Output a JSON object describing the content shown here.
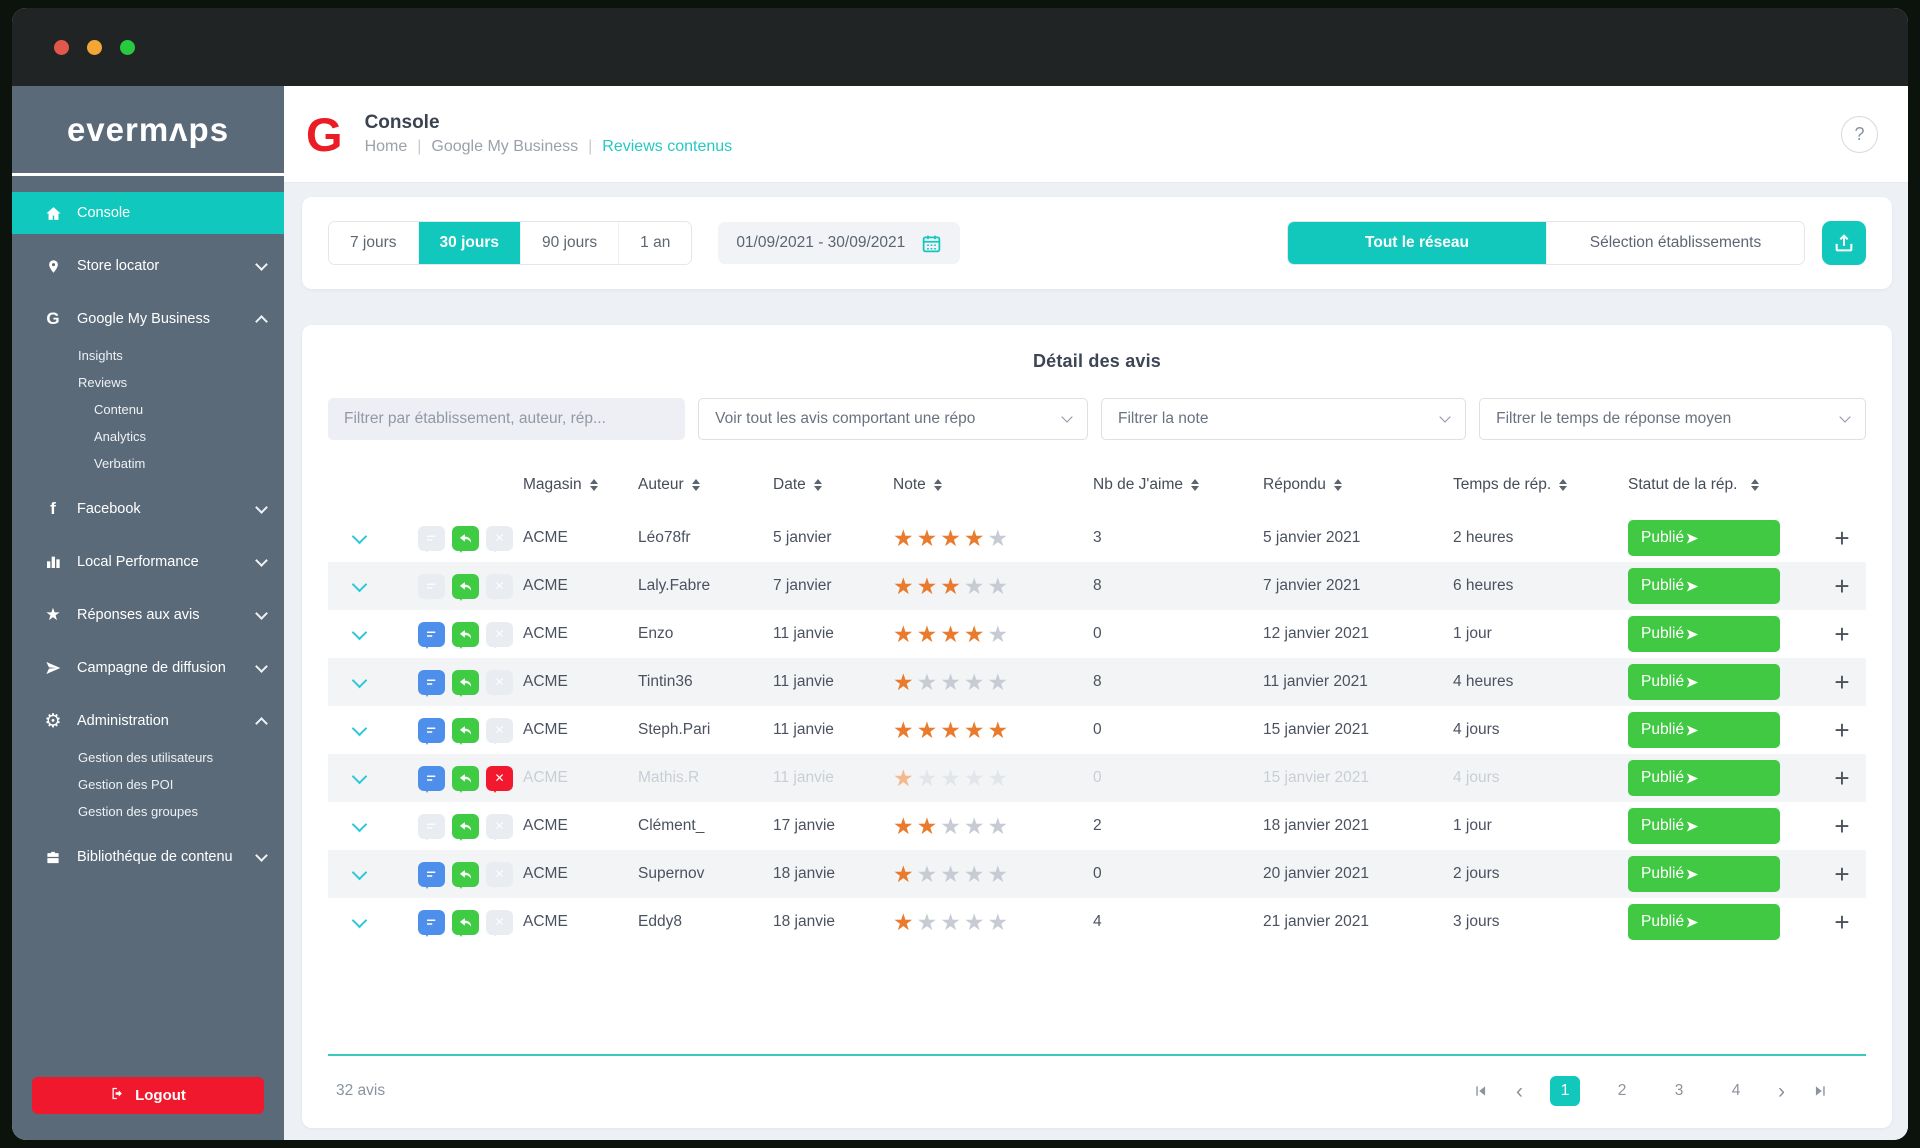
{
  "colors": {
    "accent_teal": "#12c8bd",
    "sidebar_slate": "#5b6a79",
    "badge_green": "#41c944",
    "star_orange": "#e87b2e",
    "danger_red": "#f0182d",
    "comment_blue": "#4d8fea",
    "traffic_lights": [
      "#e2574c",
      "#f3a536",
      "#27c93f"
    ]
  },
  "icons": {
    "star_glyph": "★",
    "gear_glyph": "⚙",
    "facebook_glyph": "f",
    "google_glyph": "G",
    "help_glyph": "?",
    "plus_glyph": "+",
    "prev_glyph": "‹",
    "next_glyph": "›",
    "crumb_sep": "|"
  },
  "sidebar": {
    "logo": "evermʌps",
    "items": [
      {
        "label": "Console"
      },
      {
        "label": "Store locator"
      },
      {
        "label": "Google My Business",
        "children": [
          {
            "label": "Insights"
          },
          {
            "label": "Reviews"
          },
          {
            "label": "Contenu"
          },
          {
            "label": "Analytics"
          },
          {
            "label": "Verbatim"
          }
        ]
      },
      {
        "label": "Facebook"
      },
      {
        "label": "Local Performance"
      },
      {
        "label": "Réponses aux avis"
      },
      {
        "label": "Campagne de diffusion"
      },
      {
        "label": "Administration",
        "children": [
          {
            "label": "Gestion des utilisateurs"
          },
          {
            "label": "Gestion des POI"
          },
          {
            "label": "Gestion des groupes"
          }
        ]
      },
      {
        "label": "Bibliothéque de contenu"
      }
    ],
    "logout_label": "Logout"
  },
  "header": {
    "logo_letter": "G",
    "title": "Console",
    "breadcrumb": [
      "Home",
      "Google My Business",
      "Reviews contenus"
    ]
  },
  "toolbar": {
    "periods": [
      "7 jours",
      "30 jours",
      "90 jours",
      "1 an"
    ],
    "active_period": "30 jours",
    "date_range": "01/09/2021 - 30/09/2021",
    "network_buttons": [
      "Tout le réseau",
      "Sélection établissements"
    ],
    "active_network": "Tout le réseau"
  },
  "panel": {
    "title": "Détail des avis",
    "filters": {
      "search_placeholder": "Filtrer par établissement, auteur, rép...",
      "dropdowns": [
        "Voir tout les avis comportant une répo",
        "Filtrer la note",
        "Filtrer le temps de réponse moyen"
      ]
    },
    "table": {
      "columns": [
        "Magasin",
        "Auteur",
        "Date",
        "Note",
        "Nb de J'aime",
        "Répondu",
        "Temps de rép.",
        "Statut de la rép."
      ],
      "rows": [
        {
          "magasin": "ACME",
          "auteur": "Léo78fr",
          "date": "5 janvier",
          "note": 4,
          "likes": "3",
          "repondu": "5 janvier 2021",
          "temps": "2 heures",
          "statut": "Publié",
          "comment": "off",
          "reject": "off",
          "muted": false
        },
        {
          "magasin": "ACME",
          "auteur": "Laly.Fabre",
          "date": "7 janvier",
          "note": 3,
          "likes": "8",
          "repondu": "7 janvier 2021",
          "temps": "6 heures",
          "statut": "Publié",
          "comment": "off",
          "reject": "off",
          "muted": false
        },
        {
          "magasin": "ACME",
          "auteur": "Enzo",
          "date": "11 janvie",
          "note": 4,
          "likes": "0",
          "repondu": "12 janvier 2021",
          "temps": "1 jour",
          "statut": "Publié",
          "comment": "on",
          "reject": "off",
          "muted": false
        },
        {
          "magasin": "ACME",
          "auteur": "Tintin36",
          "date": "11 janvie",
          "note": 1,
          "likes": "8",
          "repondu": "11 janvier 2021",
          "temps": "4 heures",
          "statut": "Publié",
          "comment": "on",
          "reject": "off",
          "muted": false
        },
        {
          "magasin": "ACME",
          "auteur": "Steph.Pari",
          "date": "11 janvie",
          "note": 5,
          "likes": "0",
          "repondu": "15 janvier 2021",
          "temps": "4 jours",
          "statut": "Publié",
          "comment": "on",
          "reject": "off",
          "muted": false
        },
        {
          "magasin": "ACME",
          "auteur": "Mathis.R",
          "date": "11 janvie",
          "note": 1,
          "likes": "0",
          "repondu": "15 janvier 2021",
          "temps": "4 jours",
          "statut": "Publié",
          "comment": "on",
          "reject": "danger",
          "muted": true
        },
        {
          "magasin": "ACME",
          "auteur": "Clément_",
          "date": "17 janvie",
          "note": 2,
          "likes": "2",
          "repondu": "18 janvier 2021",
          "temps": "1 jour",
          "statut": "Publié",
          "comment": "off",
          "reject": "off",
          "muted": false
        },
        {
          "magasin": "ACME",
          "auteur": "Supernov",
          "date": "18 janvie",
          "note": 1,
          "likes": "0",
          "repondu": "20 janvier 2021",
          "temps": "2 jours",
          "statut": "Publié",
          "comment": "on",
          "reject": "off",
          "muted": false
        },
        {
          "magasin": "ACME",
          "auteur": "Eddy8",
          "date": "18 janvie",
          "note": 1,
          "likes": "4",
          "repondu": "21 janvier 2021",
          "temps": "3 jours",
          "statut": "Publié",
          "comment": "on",
          "reject": "off",
          "muted": false
        }
      ]
    },
    "footer": {
      "count": "32 avis",
      "pages": [
        "1",
        "2",
        "3",
        "4"
      ],
      "active_page": "1"
    }
  }
}
